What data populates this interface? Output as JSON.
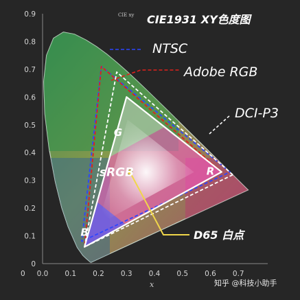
{
  "chart_data": {
    "type": "scatter",
    "title": "CIE1931 XY色度图",
    "subtitle": "CIE xy",
    "xlabel": "x",
    "ylabel": "",
    "xlim": [
      0,
      0.8
    ],
    "ylim": [
      0,
      0.9
    ],
    "x_ticks": [
      "0.0",
      "0.1",
      "0.2",
      "0.3",
      "0.4",
      "0.5",
      "0.6",
      "0.7"
    ],
    "y_ticks": [
      "0",
      "0.1",
      "0.2",
      "0.3",
      "0.4",
      "0.5",
      "0.6",
      "0.7",
      "0.8",
      "0.9"
    ],
    "grid": false,
    "spectral_locus": [
      [
        0.1741,
        0.005
      ],
      [
        0.1738,
        0.0049
      ],
      [
        0.1736,
        0.0049
      ],
      [
        0.1733,
        0.0048
      ],
      [
        0.1726,
        0.0048
      ],
      [
        0.1714,
        0.0051
      ],
      [
        0.1689,
        0.0069
      ],
      [
        0.1644,
        0.0109
      ],
      [
        0.1566,
        0.0177
      ],
      [
        0.144,
        0.0297
      ],
      [
        0.1241,
        0.0578
      ],
      [
        0.0913,
        0.1327
      ],
      [
        0.0687,
        0.2007
      ],
      [
        0.0454,
        0.295
      ],
      [
        0.0235,
        0.4127
      ],
      [
        0.0082,
        0.5384
      ],
      [
        0.0039,
        0.6548
      ],
      [
        0.0139,
        0.7502
      ],
      [
        0.0389,
        0.812
      ],
      [
        0.0743,
        0.8338
      ],
      [
        0.1142,
        0.8262
      ],
      [
        0.1547,
        0.8059
      ],
      [
        0.1929,
        0.7816
      ],
      [
        0.2296,
        0.7543
      ],
      [
        0.2658,
        0.7243
      ],
      [
        0.3016,
        0.6923
      ],
      [
        0.3373,
        0.6589
      ],
      [
        0.3731,
        0.6245
      ],
      [
        0.4087,
        0.5896
      ],
      [
        0.4441,
        0.5547
      ],
      [
        0.4788,
        0.5202
      ],
      [
        0.5125,
        0.4866
      ],
      [
        0.5448,
        0.4544
      ],
      [
        0.5752,
        0.4242
      ],
      [
        0.6029,
        0.3965
      ],
      [
        0.627,
        0.3725
      ],
      [
        0.6482,
        0.3514
      ],
      [
        0.6658,
        0.334
      ],
      [
        0.6801,
        0.3197
      ],
      [
        0.6915,
        0.3083
      ],
      [
        0.714,
        0.2859
      ],
      [
        0.7347,
        0.2653
      ]
    ],
    "series": [
      {
        "name": "NTSC",
        "points": [
          [
            0.67,
            0.33
          ],
          [
            0.21,
            0.71
          ],
          [
            0.14,
            0.08
          ]
        ],
        "color": "#2d45ff",
        "style": "dashed"
      },
      {
        "name": "Adobe RGB",
        "points": [
          [
            0.64,
            0.33
          ],
          [
            0.21,
            0.71
          ],
          [
            0.15,
            0.06
          ]
        ],
        "color": "#e0201c",
        "style": "dashed"
      },
      {
        "name": "DCI-P3",
        "points": [
          [
            0.68,
            0.32
          ],
          [
            0.265,
            0.69
          ],
          [
            0.15,
            0.06
          ]
        ],
        "color": "#ffffff",
        "style": "dashed"
      },
      {
        "name": "sRGB",
        "points": [
          [
            0.64,
            0.33
          ],
          [
            0.3,
            0.6
          ],
          [
            0.15,
            0.06
          ]
        ],
        "color": "#ffffff",
        "style": "solid"
      }
    ],
    "vertex_labels": [
      {
        "text": "R",
        "x": 0.6,
        "y": 0.32
      },
      {
        "text": "G",
        "x": 0.27,
        "y": 0.46
      },
      {
        "text": "B",
        "x": 0.15,
        "y": 0.1
      }
    ],
    "inner_label": {
      "text": "sRGB",
      "x": 0.265,
      "y": 0.315
    },
    "white_point": {
      "name": "D65 白点",
      "x": 0.3127,
      "y": 0.329,
      "color": "#f0d64a"
    },
    "watermark": "知乎 @科技小助手"
  }
}
